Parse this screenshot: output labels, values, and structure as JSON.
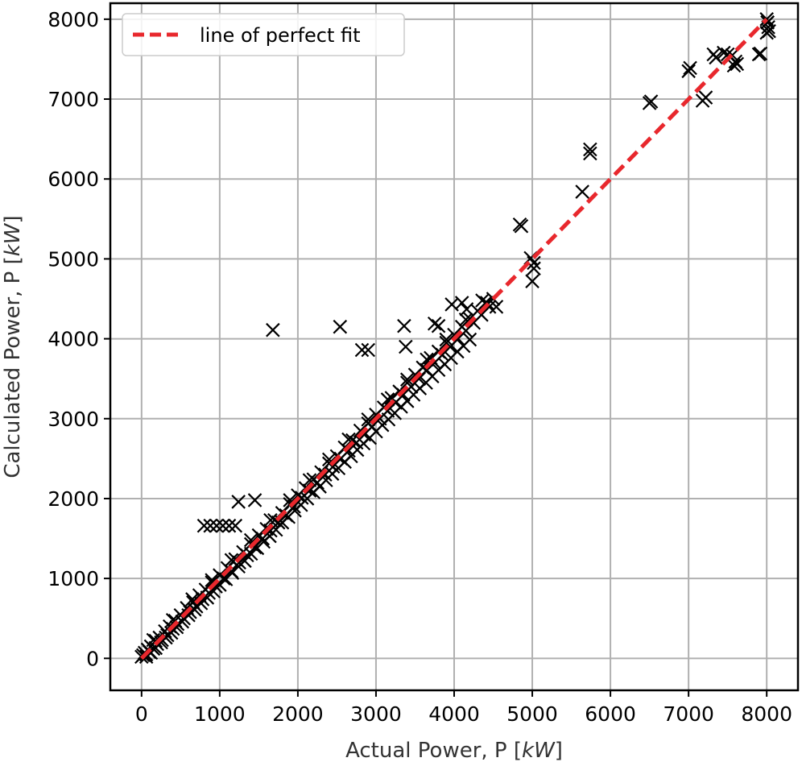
{
  "chart_data": {
    "type": "scatter",
    "title": "",
    "xlabel_prefix": "Actual Power, P [",
    "xlabel_unit": "kW",
    "xlabel_suffix": "]",
    "ylabel_prefix": "Calculated Power, P [",
    "ylabel_unit": "kW",
    "ylabel_suffix": "]",
    "xlim": [
      -400,
      8400
    ],
    "ylim": [
      -400,
      8200
    ],
    "xticks": [
      0,
      1000,
      2000,
      3000,
      4000,
      5000,
      6000,
      7000,
      8000
    ],
    "yticks": [
      0,
      1000,
      2000,
      3000,
      4000,
      5000,
      6000,
      7000,
      8000
    ],
    "grid": true,
    "legend": {
      "position": "top-left",
      "label": "line of perfect fit",
      "color": "#e8282d"
    },
    "fit_line": {
      "x": [
        0,
        8000
      ],
      "y": [
        0,
        8000
      ],
      "color": "#e8282d",
      "style": "dashed"
    },
    "marker_color": "#000000",
    "marker": "x",
    "series": [
      {
        "x": [
          0,
          20,
          40,
          60,
          80,
          100,
          120,
          150,
          180,
          200,
          230,
          260,
          300,
          330,
          360,
          400,
          430,
          460,
          500,
          540,
          580,
          620,
          660,
          700,
          740,
          780,
          820,
          860,
          900,
          950,
          1000,
          1050,
          1100,
          1150,
          1200,
          1250,
          1300,
          1350,
          1400,
          1450,
          1500,
          1550,
          1600,
          1650,
          1700,
          1750,
          1800,
          1850,
          1900,
          1950,
          2000,
          2050,
          2100,
          2150,
          2200,
          2250,
          2300,
          2350,
          2400,
          2450,
          2500,
          2550,
          2600,
          2650,
          2700,
          2750,
          2800,
          2850,
          2900,
          2950,
          3000,
          3050,
          3100,
          3150,
          3200,
          3250,
          3300,
          3350,
          3400,
          3450,
          3500,
          3550,
          3600,
          3650,
          3700,
          3750,
          3800,
          3850,
          3900,
          3950,
          4000,
          4050,
          4100,
          4150,
          4200,
          4250,
          4300,
          4350,
          4400,
          4450,
          4500,
          60,
          120,
          180,
          250,
          310,
          380,
          450,
          520,
          600,
          680,
          760,
          840,
          920,
          1000,
          1080,
          1160,
          1240,
          1320,
          1400,
          1480,
          1560,
          1640,
          1720,
          1800,
          1880,
          1960,
          2040,
          2120,
          2200,
          2280,
          2360,
          2440,
          2520,
          2600,
          2680,
          2760,
          2840,
          2920,
          3000,
          3080,
          3160,
          3240,
          3320,
          3400,
          3480,
          3560,
          3640,
          3720,
          3800,
          3880,
          3960,
          4040,
          4120,
          4200,
          150,
          400,
          650,
          900,
          1150,
          1400,
          1650,
          1900,
          2150,
          2400,
          2650,
          2900,
          3150,
          3400,
          3650,
          3900,
          4150,
          800,
          880,
          960,
          1040,
          1120,
          1200,
          1240,
          1450,
          1680,
          2540,
          2820,
          2900,
          3360,
          3380,
          3750,
          3800,
          3970,
          4100,
          4160,
          4360,
          4420,
          4540,
          4840,
          4860,
          4980,
          5020,
          5000,
          5020,
          5640,
          5740,
          5740,
          6500,
          6520,
          7000,
          7020,
          7180,
          7220,
          7320,
          7350,
          7450,
          7500,
          7560,
          7600,
          7580,
          7620,
          7900,
          7920,
          8000,
          8010,
          8020,
          8030,
          8000,
          8010
        ],
        "y": [
          20,
          40,
          70,
          50,
          110,
          80,
          150,
          120,
          220,
          180,
          260,
          230,
          340,
          290,
          400,
          370,
          470,
          430,
          540,
          500,
          630,
          580,
          700,
          650,
          790,
          740,
          860,
          820,
          950,
          900,
          1040,
          1000,
          1130,
          1090,
          1240,
          1200,
          1330,
          1290,
          1430,
          1390,
          1540,
          1500,
          1620,
          1600,
          1730,
          1700,
          1820,
          1790,
          1930,
          1900,
          2040,
          2010,
          2130,
          2100,
          2240,
          2200,
          2330,
          2300,
          2440,
          2400,
          2530,
          2500,
          2640,
          2600,
          2730,
          2700,
          2850,
          2800,
          2940,
          2900,
          3050,
          3000,
          3140,
          3100,
          3260,
          3200,
          3340,
          3300,
          3450,
          3400,
          3550,
          3500,
          3640,
          3610,
          3760,
          3700,
          3840,
          3800,
          3950,
          3900,
          4050,
          4000,
          4150,
          4100,
          4250,
          4200,
          4350,
          4300,
          4450,
          4400,
          4500,
          20,
          70,
          130,
          200,
          260,
          320,
          390,
          460,
          540,
          610,
          690,
          760,
          840,
          920,
          990,
          1070,
          1150,
          1220,
          1310,
          1380,
          1460,
          1530,
          1610,
          1700,
          1770,
          1850,
          1920,
          2000,
          2080,
          2150,
          2230,
          2310,
          2380,
          2460,
          2530,
          2610,
          2690,
          2760,
          2840,
          2920,
          2990,
          3070,
          3150,
          3220,
          3300,
          3380,
          3450,
          3530,
          3610,
          3680,
          3760,
          3840,
          3910,
          3990,
          230,
          480,
          740,
          980,
          1230,
          1480,
          1730,
          1980,
          2230,
          2490,
          2740,
          2990,
          3240,
          3490,
          3740,
          3990,
          4240,
          1660,
          1660,
          1660,
          1660,
          1660,
          1660,
          1960,
          1980,
          4110,
          4150,
          3860,
          3860,
          4160,
          3900,
          4190,
          4160,
          4430,
          4450,
          4370,
          4480,
          4450,
          4400,
          5430,
          5410,
          5010,
          4950,
          4720,
          4880,
          5840,
          6320,
          6370,
          6950,
          6970,
          7350,
          7390,
          6980,
          7020,
          7560,
          7520,
          7580,
          7560,
          7550,
          7470,
          7420,
          7440,
          7560,
          7570,
          8000,
          7960,
          7900,
          7850,
          7830,
          7960
        ]
      }
    ]
  }
}
